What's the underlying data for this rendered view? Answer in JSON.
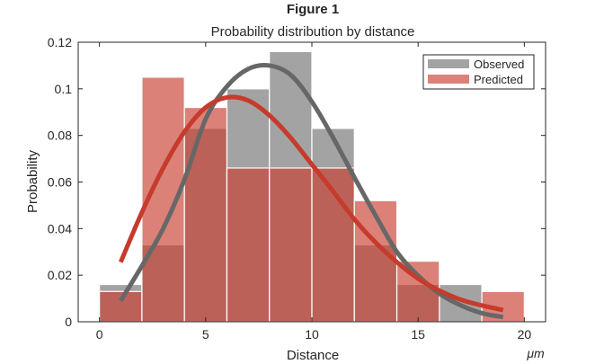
{
  "figure_title": "Figure 1",
  "chart_data": {
    "type": "bar",
    "title": "Probability distribution by distance",
    "xlabel": "Distance",
    "xunit": "μm",
    "ylabel": "Probability",
    "xlim": [
      -1,
      21
    ],
    "ylim": [
      0,
      0.12
    ],
    "xticks": [
      0,
      5,
      10,
      15,
      20
    ],
    "xtick_labels": [
      "0",
      "5",
      "10",
      "15",
      "20"
    ],
    "yticks": [
      0,
      0.02,
      0.04,
      0.06,
      0.08,
      0.1,
      0.12
    ],
    "ytick_labels": [
      "0",
      "0.02",
      "0.04",
      "0.06",
      "0.08",
      "0.1",
      "0.12"
    ],
    "grid": false,
    "legend_position": "top-right",
    "bin_edges": [
      0,
      2,
      4,
      6,
      8,
      10,
      12,
      14,
      16,
      18,
      20
    ],
    "series": [
      {
        "name": "Observed",
        "color": "#a3a3a3",
        "values": [
          0.016,
          0.033,
          0.083,
          0.1,
          0.116,
          0.083,
          0.033,
          0.016,
          0.016,
          0
        ]
      },
      {
        "name": "Predicted",
        "color": "#c83d30",
        "values": [
          0.013,
          0.105,
          0.092,
          0.066,
          0.066,
          0.066,
          0.052,
          0.026,
          0,
          0.013
        ]
      }
    ],
    "curves": [
      {
        "name": "Observed fit",
        "color": "#676767",
        "x": [
          1,
          2,
          3,
          4,
          5,
          6,
          7,
          8,
          9,
          10,
          11,
          12,
          13,
          14,
          15,
          16,
          17,
          18,
          19
        ],
        "y": [
          0.009,
          0.024,
          0.04,
          0.061,
          0.087,
          0.101,
          0.1085,
          0.11,
          0.106,
          0.0945,
          0.079,
          0.062,
          0.0456,
          0.03,
          0.0198,
          0.0121,
          0.0071,
          0.0037,
          0.002
        ]
      },
      {
        "name": "Predicted fit",
        "color": "#c63b2b",
        "x": [
          1,
          2,
          3,
          4,
          5,
          6,
          7,
          8,
          9,
          10,
          11,
          12,
          13,
          14,
          15,
          16,
          17,
          18,
          19
        ],
        "y": [
          0.0256,
          0.047,
          0.066,
          0.0815,
          0.092,
          0.0963,
          0.095,
          0.0886,
          0.079,
          0.0675,
          0.056,
          0.044,
          0.034,
          0.0256,
          0.0185,
          0.0134,
          0.0095,
          0.007,
          0.005
        ]
      }
    ]
  }
}
